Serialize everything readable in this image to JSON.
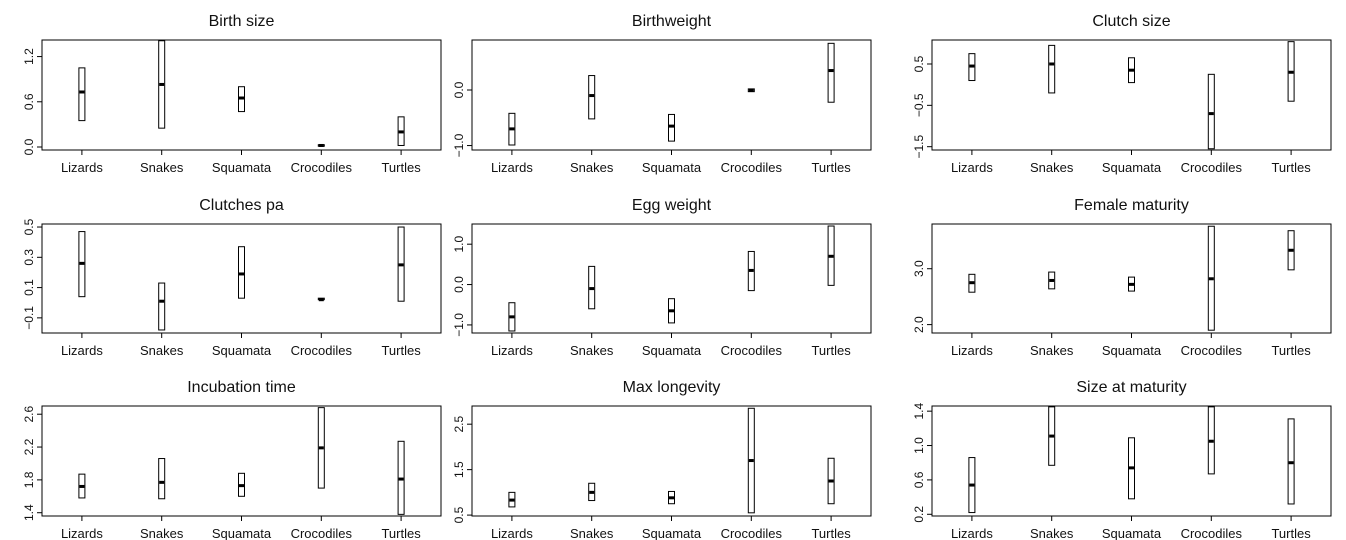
{
  "chart_data": [
    {
      "type": "box",
      "title": "Birth size",
      "categories": [
        "Lizards",
        "Snakes",
        "Squamata",
        "Crocodiles",
        "Turtles"
      ],
      "yticks": [
        0.0,
        0.6,
        1.2
      ],
      "ytick_labels": [
        "0.0",
        "0.6",
        "1.2"
      ],
      "ylim": [
        -0.04,
        1.42
      ],
      "series": [
        {
          "low": [
            0.35,
            0.25,
            0.47,
            0.01,
            0.02
          ],
          "high": [
            1.05,
            1.41,
            0.8,
            0.03,
            0.4
          ],
          "mid": [
            0.73,
            0.83,
            0.65,
            0.02,
            0.2
          ]
        }
      ]
    },
    {
      "type": "box",
      "title": "Birthweight",
      "categories": [
        "Lizards",
        "Snakes",
        "Squamata",
        "Crocodiles",
        "Turtles"
      ],
      "yticks": [
        -1.0,
        -0.0
      ],
      "ytick_labels": [
        "−1.0",
        "0.0"
      ],
      "ylim": [
        -1.08,
        0.9
      ],
      "series": [
        {
          "low": [
            -0.99,
            -0.52,
            -0.92,
            -0.03,
            -0.22
          ],
          "high": [
            -0.42,
            0.26,
            -0.44,
            0.02,
            0.84
          ],
          "mid": [
            -0.7,
            -0.1,
            -0.65,
            0.0,
            0.35
          ]
        }
      ]
    },
    {
      "type": "box",
      "title": "Clutch size",
      "categories": [
        "Lizards",
        "Snakes",
        "Squamata",
        "Crocodiles",
        "Turtles"
      ],
      "yticks": [
        -1.5,
        -0.5,
        0.5
      ],
      "ytick_labels": [
        "−1.5",
        "−0.5",
        "0.5"
      ],
      "ylim": [
        -1.58,
        1.08
      ],
      "series": [
        {
          "low": [
            0.1,
            -0.2,
            0.05,
            -1.55,
            -0.4
          ],
          "high": [
            0.75,
            0.95,
            0.65,
            0.25,
            1.04
          ],
          "mid": [
            0.45,
            0.5,
            0.35,
            -0.7,
            0.3
          ]
        }
      ]
    },
    {
      "type": "box",
      "title": "Clutches pa",
      "categories": [
        "Lizards",
        "Snakes",
        "Squamata",
        "Crocodiles",
        "Turtles"
      ],
      "yticks": [
        -0.1,
        0.1,
        0.3,
        0.5
      ],
      "ytick_labels": [
        "−0.1",
        "0.1",
        "0.3",
        "0.5"
      ],
      "ylim": [
        -0.2,
        0.52
      ],
      "series": [
        {
          "low": [
            0.04,
            -0.18,
            0.03,
            0.02,
            0.01
          ],
          "high": [
            0.47,
            0.13,
            0.37,
            0.03,
            0.5
          ],
          "mid": [
            0.26,
            0.01,
            0.19,
            0.02,
            0.25
          ]
        }
      ]
    },
    {
      "type": "box",
      "title": "Egg weight",
      "categories": [
        "Lizards",
        "Snakes",
        "Squamata",
        "Crocodiles",
        "Turtles"
      ],
      "yticks": [
        -1.0,
        0.0,
        1.0
      ],
      "ytick_labels": [
        "−1.0",
        "0.0",
        "1.0"
      ],
      "ylim": [
        -1.2,
        1.5
      ],
      "series": [
        {
          "low": [
            -1.15,
            -0.6,
            -0.95,
            -0.15,
            -0.02
          ],
          "high": [
            -0.45,
            0.45,
            -0.35,
            0.82,
            1.45
          ],
          "mid": [
            -0.8,
            -0.1,
            -0.65,
            0.35,
            0.7
          ]
        }
      ]
    },
    {
      "type": "box",
      "title": "Female maturity",
      "categories": [
        "Lizards",
        "Snakes",
        "Squamata",
        "Crocodiles",
        "Turtles"
      ],
      "yticks": [
        2.0,
        3.0
      ],
      "ytick_labels": [
        "2.0",
        "3.0"
      ],
      "ylim": [
        1.85,
        3.8
      ],
      "series": [
        {
          "low": [
            2.58,
            2.64,
            2.6,
            1.9,
            2.98
          ],
          "high": [
            2.9,
            2.94,
            2.85,
            3.76,
            3.68
          ],
          "mid": [
            2.75,
            2.79,
            2.72,
            2.82,
            3.33
          ]
        }
      ]
    },
    {
      "type": "box",
      "title": "Incubation time",
      "categories": [
        "Lizards",
        "Snakes",
        "Squamata",
        "Crocodiles",
        "Turtles"
      ],
      "yticks": [
        1.4,
        1.8,
        2.2,
        2.6
      ],
      "ytick_labels": [
        "1.4",
        "1.8",
        "2.2",
        "2.6"
      ],
      "ylim": [
        1.36,
        2.7
      ],
      "series": [
        {
          "low": [
            1.58,
            1.57,
            1.6,
            1.7,
            1.38
          ],
          "high": [
            1.87,
            2.06,
            1.88,
            2.68,
            2.27
          ],
          "mid": [
            1.72,
            1.77,
            1.73,
            2.19,
            1.81
          ]
        }
      ]
    },
    {
      "type": "box",
      "title": "Max longevity",
      "categories": [
        "Lizards",
        "Snakes",
        "Squamata",
        "Crocodiles",
        "Turtles"
      ],
      "yticks": [
        0.5,
        1.5,
        2.5
      ],
      "ytick_labels": [
        "0.5",
        "1.5",
        "2.5"
      ],
      "ylim": [
        0.48,
        2.9
      ],
      "series": [
        {
          "low": [
            0.68,
            0.82,
            0.75,
            0.55,
            0.75
          ],
          "high": [
            1.0,
            1.2,
            1.02,
            2.85,
            1.75
          ],
          "mid": [
            0.83,
            1.0,
            0.88,
            1.7,
            1.25
          ]
        }
      ]
    },
    {
      "type": "box",
      "title": "Size at maturity",
      "categories": [
        "Lizards",
        "Snakes",
        "Squamata",
        "Crocodiles",
        "Turtles"
      ],
      "yticks": [
        0.2,
        0.6,
        1.0,
        1.4
      ],
      "ytick_labels": [
        "0.2",
        "0.6",
        "1.0",
        "1.4"
      ],
      "ylim": [
        0.18,
        1.46
      ],
      "series": [
        {
          "low": [
            0.22,
            0.77,
            0.38,
            0.67,
            0.32
          ],
          "high": [
            0.86,
            1.45,
            1.09,
            1.45,
            1.31
          ],
          "mid": [
            0.54,
            1.11,
            0.74,
            1.05,
            0.8
          ]
        }
      ]
    }
  ]
}
